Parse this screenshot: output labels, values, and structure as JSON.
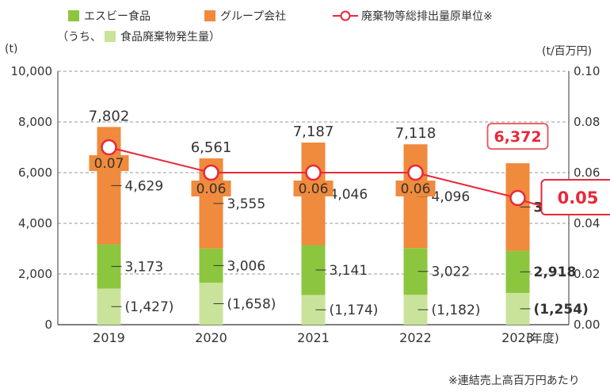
{
  "legend": {
    "sb": "エスビー食品",
    "group": "グループ会社",
    "intensity": "廃棄物等総排出量原単位※",
    "food_waste": "食品廃棄物発生量",
    "food_waste_prefix": "（うち、",
    "food_waste_suffix": "）"
  },
  "units": {
    "left": "(t)",
    "right": "(t/百万円)",
    "x": "(年度)"
  },
  "footnote": "※連結売上高百万円あたり",
  "colors": {
    "sb": "#8cc63f",
    "group": "#f08a3c",
    "food_waste": "#c9e49a",
    "line": "#e8283a",
    "highlight": "#e8505b",
    "highlight_text": "#e8283a",
    "axis": "#333333",
    "grid": "#999999"
  },
  "chart_data": {
    "type": "bar",
    "categories": [
      "2019",
      "2020",
      "2021",
      "2022",
      "2023"
    ],
    "totals": [
      "7,802",
      "6,561",
      "7,187",
      "7,118",
      "6,372"
    ],
    "series": [
      {
        "name": "エスビー食品",
        "values": [
          3173,
          3006,
          3141,
          3022,
          2918
        ],
        "labels": [
          "3,173",
          "3,006",
          "3,141",
          "3,022",
          "2,918"
        ]
      },
      {
        "name": "グループ会社",
        "values": [
          4629,
          3555,
          4046,
          4096,
          3454
        ],
        "labels": [
          "4,629",
          "3,555",
          "4,046",
          "4,096",
          "3,454"
        ]
      },
      {
        "name": "食品廃棄物発生量",
        "values": [
          1427,
          1658,
          1174,
          1182,
          1254
        ],
        "labels": [
          "(1,427)",
          "(1,658)",
          "(1,174)",
          "(1,182)",
          "(1,254)"
        ]
      },
      {
        "name": "廃棄物等総排出量原単位",
        "axis": "right",
        "type": "line",
        "values": [
          0.07,
          0.06,
          0.06,
          0.06,
          0.05
        ],
        "labels": [
          "0.07",
          "0.06",
          "0.06",
          "0.06",
          "0.05"
        ]
      }
    ],
    "ylim": [
      0,
      10000
    ],
    "yticks": [
      "0",
      "2,000",
      "4,000",
      "6,000",
      "8,000",
      "10,000"
    ],
    "y2lim": [
      0,
      0.1
    ],
    "y2ticks": [
      "0.00",
      "0.02",
      "0.04",
      "0.06",
      "0.08",
      "0.10"
    ],
    "grid": true,
    "highlight_index": 4
  }
}
